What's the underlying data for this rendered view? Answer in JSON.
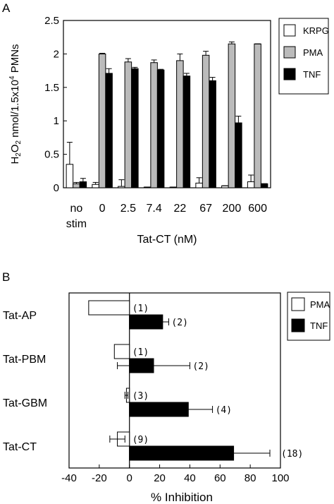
{
  "panels": {
    "a_label": "A",
    "b_label": "B"
  },
  "chart_data": [
    {
      "type": "bar",
      "ylabel": "H2O2 nmol/1.5x104 PMNs",
      "ylabel_main": "H",
      "ylabel_sub1": "2",
      "ylabel_mid": "O",
      "ylabel_sub2": "2",
      "ylabel_rest": " nmol/1.5x10",
      "ylabel_sup": "4",
      "ylabel_tail": " PMNs",
      "xlabel": "Tat-CT  (nM)",
      "ylim": [
        0,
        2.5
      ],
      "yticks": [
        0,
        0.5,
        1,
        1.5,
        2,
        2.5
      ],
      "ytick_labels": [
        "0",
        "0.5",
        "1",
        "1.5",
        "2",
        "2.5"
      ],
      "categories": [
        "no stim",
        "0",
        "2.5",
        "7.4",
        "22",
        "67",
        "200",
        "600"
      ],
      "category_lines": [
        [
          "no",
          "stim"
        ],
        [
          "0"
        ],
        [
          "2.5"
        ],
        [
          "7.4"
        ],
        [
          "22"
        ],
        [
          "67"
        ],
        [
          "200"
        ],
        [
          "600"
        ]
      ],
      "series": [
        {
          "name": "KRPG",
          "color": "#ffffff",
          "values": [
            0.35,
            0.05,
            0.02,
            0.01,
            0.01,
            0.07,
            0.03,
            0.09
          ],
          "errors": [
            0.33,
            0.03,
            0.1,
            0.0,
            0.0,
            0.08,
            0.0,
            0.1
          ]
        },
        {
          "name": "PMA",
          "color": "#bbbbbb",
          "values": [
            0.06,
            2.0,
            1.88,
            1.87,
            1.9,
            1.98,
            2.15,
            2.15
          ],
          "errors": [
            0.02,
            0.01,
            0.05,
            0.04,
            0.1,
            0.06,
            0.03,
            0.0
          ]
        },
        {
          "name": "TNF",
          "color": "#000000",
          "values": [
            0.09,
            1.71,
            1.78,
            1.76,
            1.67,
            1.6,
            0.97,
            0.06
          ],
          "errors": [
            0.05,
            0.07,
            0.02,
            0.01,
            0.04,
            0.05,
            0.1,
            0.0
          ]
        }
      ],
      "legend": {
        "placement": "right",
        "entries": [
          "KRPG",
          "PMA",
          "TNF"
        ]
      }
    },
    {
      "type": "bar",
      "orientation": "horizontal",
      "xlabel": "%  Inhibition",
      "xlim": [
        -40,
        100
      ],
      "xticks": [
        -40,
        -20,
        0,
        20,
        40,
        60,
        80,
        100
      ],
      "xtick_labels": [
        "-40",
        "-20",
        "0",
        "20",
        "40",
        "60",
        "80",
        "100"
      ],
      "categories": [
        "Tat-AP",
        "Tat-PBM",
        "Tat-GBM",
        "Tat-CT"
      ],
      "series": [
        {
          "name": "PMA",
          "color": "#ffffff",
          "values": [
            -27,
            -10,
            -2,
            -8
          ],
          "errors": [
            0,
            0,
            1,
            5
          ],
          "n_labels": [
            "(1)",
            "(1)",
            "(3)",
            "(9)"
          ]
        },
        {
          "name": "TNF",
          "color": "#000000",
          "values": [
            22,
            16,
            39,
            69
          ],
          "errors": [
            4,
            24,
            16,
            24
          ],
          "n_labels": [
            "(2)",
            "(2)",
            "(4)",
            "(18)"
          ]
        }
      ],
      "legend": {
        "placement": "right",
        "entries": [
          "PMA",
          "TNF"
        ]
      }
    }
  ]
}
